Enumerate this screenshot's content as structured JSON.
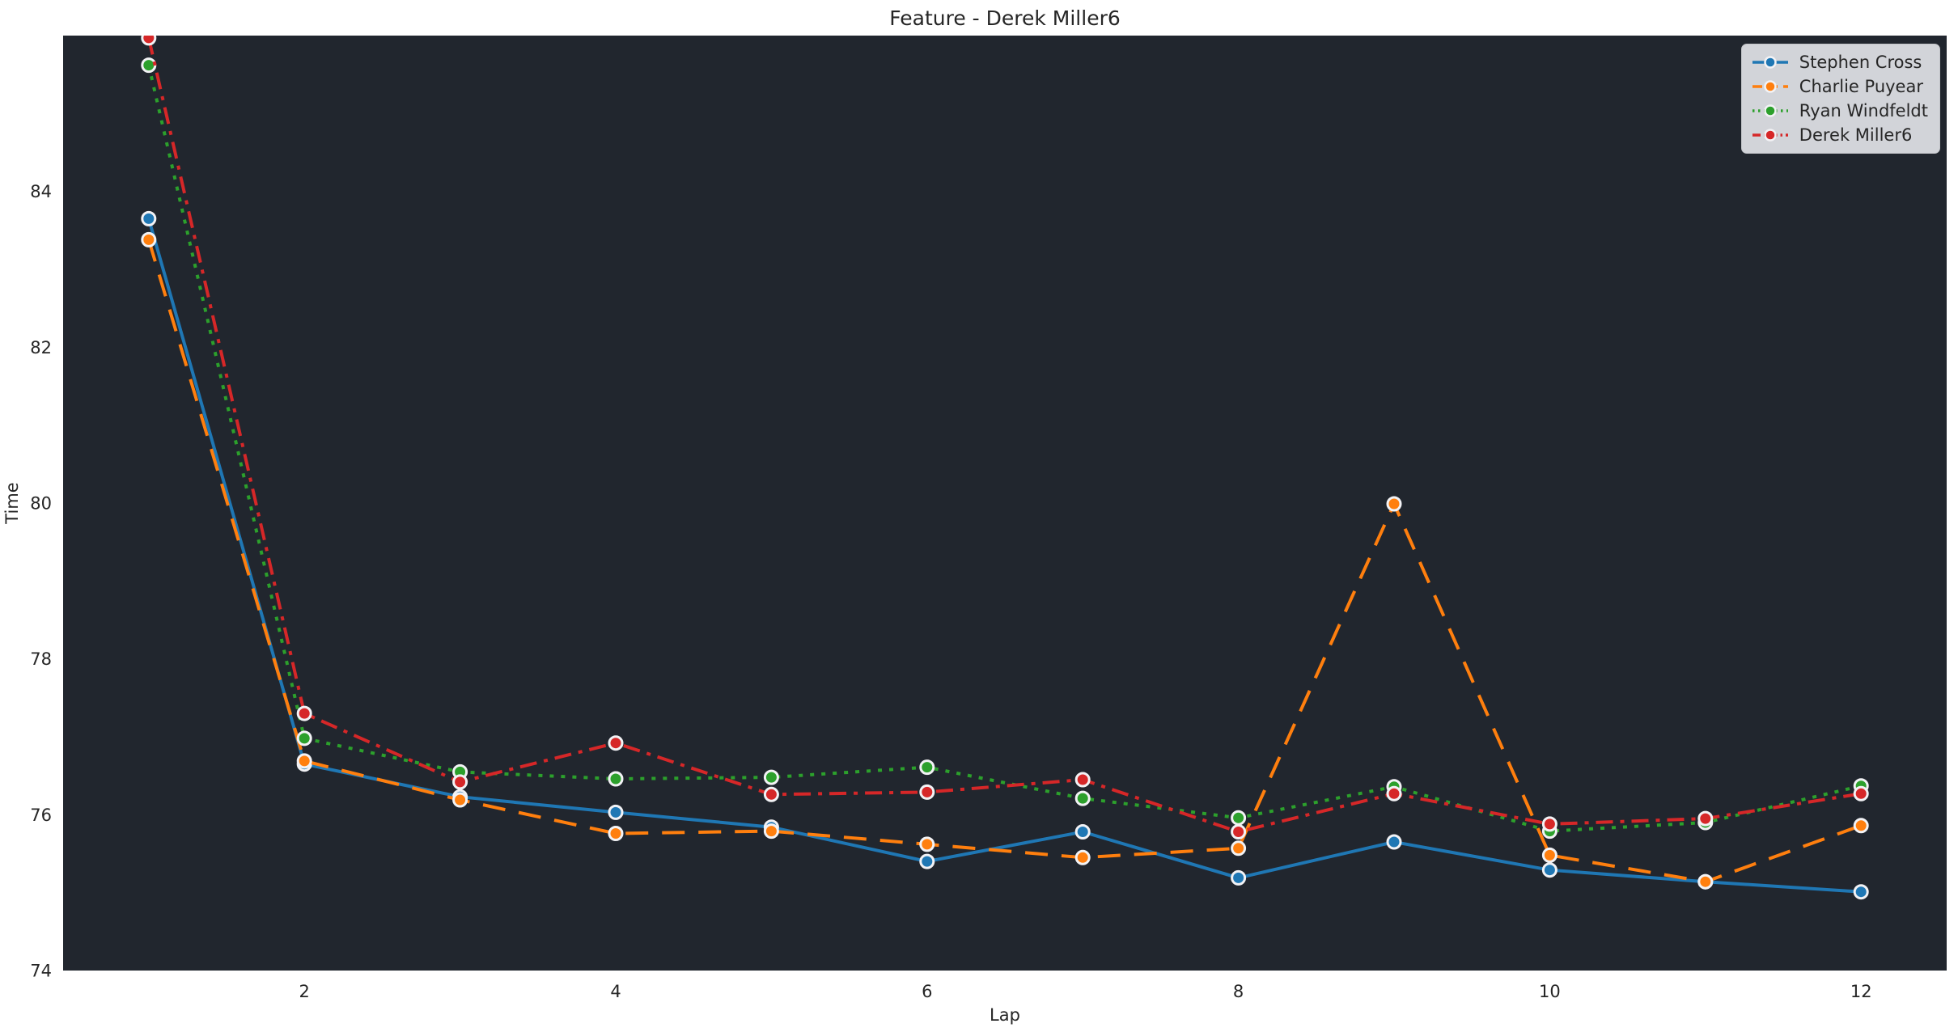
{
  "figure": {
    "background": "#ffffff",
    "plot_background": "#21262e",
    "text_color": "#262626",
    "marker_edge_color": "#f2f2f5",
    "legend_background": "#d2d4d9"
  },
  "chart_data": {
    "type": "line",
    "title": "Feature - Derek Miller6",
    "xlabel": "Lap",
    "ylabel": "Time",
    "x": [
      1,
      2,
      3,
      4,
      5,
      6,
      7,
      8,
      9,
      10,
      11,
      12
    ],
    "xticks": [
      2,
      4,
      6,
      8,
      10,
      12
    ],
    "yticks": [
      74,
      76,
      78,
      80,
      82,
      84
    ],
    "xlim": [
      0.45,
      12.55
    ],
    "ylim": [
      74,
      86
    ],
    "grid": false,
    "legend_position": "upper right",
    "series": [
      {
        "name": "Stephen Cross",
        "color": "#1f77b4",
        "dash": "solid",
        "marker": "circle",
        "values": [
          83.65,
          76.65,
          76.23,
          76.03,
          75.84,
          75.4,
          75.78,
          75.19,
          75.65,
          75.29,
          75.14,
          75.01
        ]
      },
      {
        "name": "Charlie Puyear",
        "color": "#ff7f0e",
        "dash": "dashed",
        "marker": "circle",
        "values": [
          83.38,
          76.69,
          76.19,
          75.76,
          75.79,
          75.62,
          75.45,
          75.57,
          79.99,
          75.48,
          75.14,
          75.86
        ]
      },
      {
        "name": "Ryan Windfeldt",
        "color": "#2ca02c",
        "dash": "dotted",
        "marker": "circle",
        "values": [
          85.62,
          76.98,
          76.55,
          76.46,
          76.48,
          76.61,
          76.21,
          75.96,
          76.36,
          75.79,
          75.9,
          76.37
        ]
      },
      {
        "name": "Derek Miller6",
        "color": "#d62728",
        "dash": "dashdot",
        "marker": "circle",
        "values": [
          85.97,
          77.3,
          76.42,
          76.92,
          76.26,
          76.29,
          76.45,
          75.78,
          76.27,
          75.88,
          75.95,
          76.27
        ]
      }
    ]
  }
}
